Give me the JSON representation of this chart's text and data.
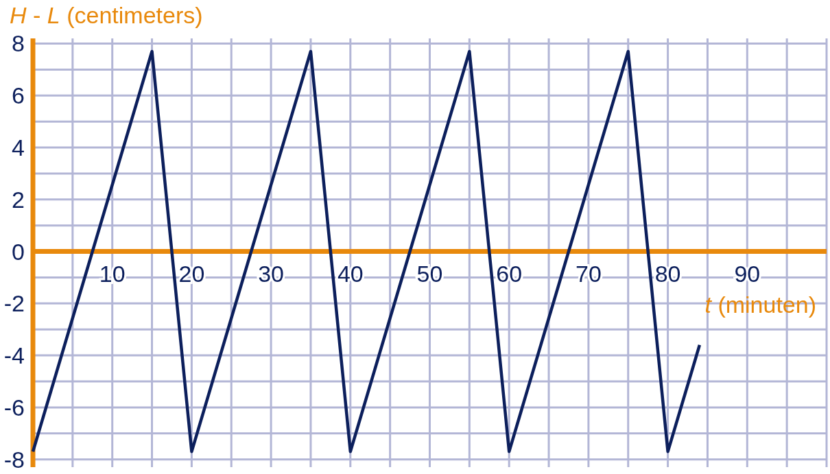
{
  "chart_data": {
    "type": "line",
    "xlabel": "t (minuten)",
    "ylabel": "H - L (centimeters)",
    "x": [
      0,
      15,
      20,
      35,
      40,
      55,
      60,
      75,
      80,
      84
    ],
    "series": [
      {
        "color": "#0c1f5c",
        "values": [
          -7.7,
          7.7,
          -7.7,
          7.7,
          -7.7,
          7.7,
          -7.7,
          7.7,
          -7.7,
          -3.6
        ]
      }
    ],
    "xlim": [
      0,
      100
    ],
    "xticks": [
      {
        "value": 0,
        "label": null
      },
      {
        "value": 5,
        "label": null
      },
      10,
      {
        "value": 15,
        "label": null
      },
      20,
      {
        "value": 25,
        "label": null
      },
      30,
      {
        "value": 35,
        "label": null
      },
      40,
      {
        "value": 45,
        "label": null
      },
      50,
      {
        "value": 55,
        "label": null
      },
      60,
      {
        "value": 65,
        "label": null
      },
      70,
      {
        "value": 75,
        "label": null
      },
      80,
      {
        "value": 85,
        "label": null
      },
      90,
      {
        "value": 95,
        "label": null
      },
      {
        "value": 100,
        "label": null
      }
    ],
    "ylim": [
      -8.3,
      8.2
    ],
    "yticks": [
      -8,
      {
        "value": -7,
        "label": null
      },
      -6,
      {
        "value": -5,
        "label": null
      },
      -4,
      {
        "value": -3,
        "label": null
      },
      -2,
      {
        "value": -1,
        "label": null
      },
      0,
      {
        "value": 1,
        "label": null
      },
      2,
      {
        "value": 3,
        "label": null
      },
      4,
      {
        "value": 5,
        "label": null
      },
      6,
      {
        "value": 7,
        "label": null
      },
      8
    ],
    "grid": true,
    "marker": "none",
    "line_style": "solid"
  }
}
